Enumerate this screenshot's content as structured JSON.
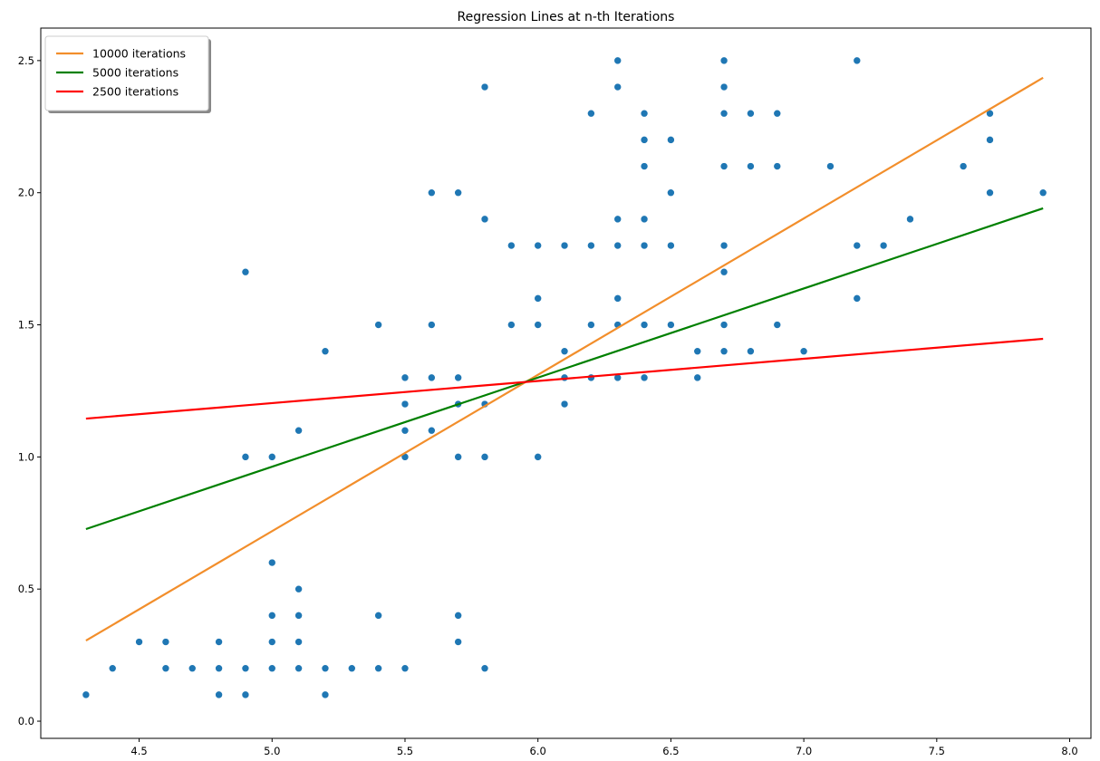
{
  "chart_data": {
    "type": "scatter",
    "title": "Regression Lines at n-th Iterations",
    "xlabel": "",
    "ylabel": "",
    "xlim": [
      4.13,
      8.08
    ],
    "ylim": [
      -0.065,
      2.623
    ],
    "grid": false,
    "legend_placement": "top-left",
    "x_ticks": [
      "4.5",
      "5.0",
      "5.5",
      "6.0",
      "6.5",
      "7.0",
      "7.5",
      "8.0"
    ],
    "y_ticks": [
      "0.0",
      "0.5",
      "1.0",
      "1.5",
      "2.0",
      "2.5"
    ],
    "scatter": {
      "color": "#1f77b4",
      "points": [
        [
          4.3,
          0.1
        ],
        [
          4.4,
          0.2
        ],
        [
          4.5,
          0.3
        ],
        [
          4.6,
          0.3
        ],
        [
          4.6,
          0.2
        ],
        [
          4.7,
          0.2
        ],
        [
          4.8,
          0.3
        ],
        [
          4.8,
          0.2
        ],
        [
          4.8,
          0.1
        ],
        [
          4.9,
          1.7
        ],
        [
          4.9,
          1.0
        ],
        [
          4.9,
          0.2
        ],
        [
          4.9,
          0.1
        ],
        [
          5.0,
          1.0
        ],
        [
          5.0,
          0.6
        ],
        [
          5.0,
          0.4
        ],
        [
          5.0,
          0.3
        ],
        [
          5.0,
          0.2
        ],
        [
          5.1,
          1.1
        ],
        [
          5.1,
          0.5
        ],
        [
          5.1,
          0.4
        ],
        [
          5.1,
          0.3
        ],
        [
          5.1,
          0.2
        ],
        [
          5.2,
          1.4
        ],
        [
          5.2,
          0.2
        ],
        [
          5.2,
          0.1
        ],
        [
          5.3,
          0.2
        ],
        [
          5.4,
          1.5
        ],
        [
          5.4,
          0.4
        ],
        [
          5.4,
          0.2
        ],
        [
          5.5,
          1.3
        ],
        [
          5.5,
          1.2
        ],
        [
          5.5,
          1.1
        ],
        [
          5.5,
          1.0
        ],
        [
          5.5,
          0.2
        ],
        [
          5.6,
          2.0
        ],
        [
          5.6,
          1.5
        ],
        [
          5.6,
          1.3
        ],
        [
          5.6,
          1.1
        ],
        [
          5.7,
          2.0
        ],
        [
          5.7,
          1.3
        ],
        [
          5.7,
          1.2
        ],
        [
          5.7,
          1.0
        ],
        [
          5.7,
          0.4
        ],
        [
          5.7,
          0.3
        ],
        [
          5.8,
          2.4
        ],
        [
          5.8,
          1.9
        ],
        [
          5.8,
          1.2
        ],
        [
          5.8,
          1.0
        ],
        [
          5.8,
          0.2
        ],
        [
          5.9,
          1.8
        ],
        [
          5.9,
          1.5
        ],
        [
          6.0,
          1.8
        ],
        [
          6.0,
          1.6
        ],
        [
          6.0,
          1.5
        ],
        [
          6.0,
          1.0
        ],
        [
          6.1,
          1.8
        ],
        [
          6.1,
          1.4
        ],
        [
          6.1,
          1.3
        ],
        [
          6.1,
          1.2
        ],
        [
          6.2,
          2.3
        ],
        [
          6.2,
          1.8
        ],
        [
          6.2,
          1.5
        ],
        [
          6.2,
          1.3
        ],
        [
          6.3,
          2.5
        ],
        [
          6.3,
          2.4
        ],
        [
          6.3,
          1.9
        ],
        [
          6.3,
          1.8
        ],
        [
          6.3,
          1.6
        ],
        [
          6.3,
          1.5
        ],
        [
          6.3,
          1.3
        ],
        [
          6.4,
          2.3
        ],
        [
          6.4,
          2.2
        ],
        [
          6.4,
          2.1
        ],
        [
          6.4,
          1.9
        ],
        [
          6.4,
          1.8
        ],
        [
          6.4,
          1.5
        ],
        [
          6.4,
          1.3
        ],
        [
          6.5,
          2.2
        ],
        [
          6.5,
          2.0
        ],
        [
          6.5,
          1.8
        ],
        [
          6.5,
          1.5
        ],
        [
          6.6,
          1.4
        ],
        [
          6.6,
          1.3
        ],
        [
          6.7,
          2.5
        ],
        [
          6.7,
          2.4
        ],
        [
          6.7,
          2.3
        ],
        [
          6.7,
          2.1
        ],
        [
          6.7,
          1.8
        ],
        [
          6.7,
          1.7
        ],
        [
          6.7,
          1.5
        ],
        [
          6.7,
          1.4
        ],
        [
          6.8,
          2.3
        ],
        [
          6.8,
          2.1
        ],
        [
          6.8,
          1.4
        ],
        [
          6.9,
          2.3
        ],
        [
          6.9,
          2.1
        ],
        [
          6.9,
          1.5
        ],
        [
          7.0,
          1.4
        ],
        [
          7.1,
          2.1
        ],
        [
          7.2,
          2.5
        ],
        [
          7.2,
          1.8
        ],
        [
          7.2,
          1.6
        ],
        [
          7.3,
          1.8
        ],
        [
          7.4,
          1.9
        ],
        [
          7.6,
          2.1
        ],
        [
          7.7,
          2.3
        ],
        [
          7.7,
          2.2
        ],
        [
          7.7,
          2.0
        ],
        [
          7.9,
          2.0
        ]
      ]
    },
    "series": [
      {
        "name": "10000 iterations",
        "type": "line",
        "color": "#f28e2b",
        "x": [
          4.3,
          7.9
        ],
        "y": [
          0.305,
          2.435
        ]
      },
      {
        "name": "5000 iterations",
        "type": "line",
        "color": "#008000",
        "x": [
          4.3,
          7.9
        ],
        "y": [
          0.727,
          1.941
        ]
      },
      {
        "name": "2500 iterations",
        "type": "line",
        "color": "#ff0000",
        "x": [
          4.3,
          7.9
        ],
        "y": [
          1.145,
          1.447
        ]
      }
    ]
  }
}
